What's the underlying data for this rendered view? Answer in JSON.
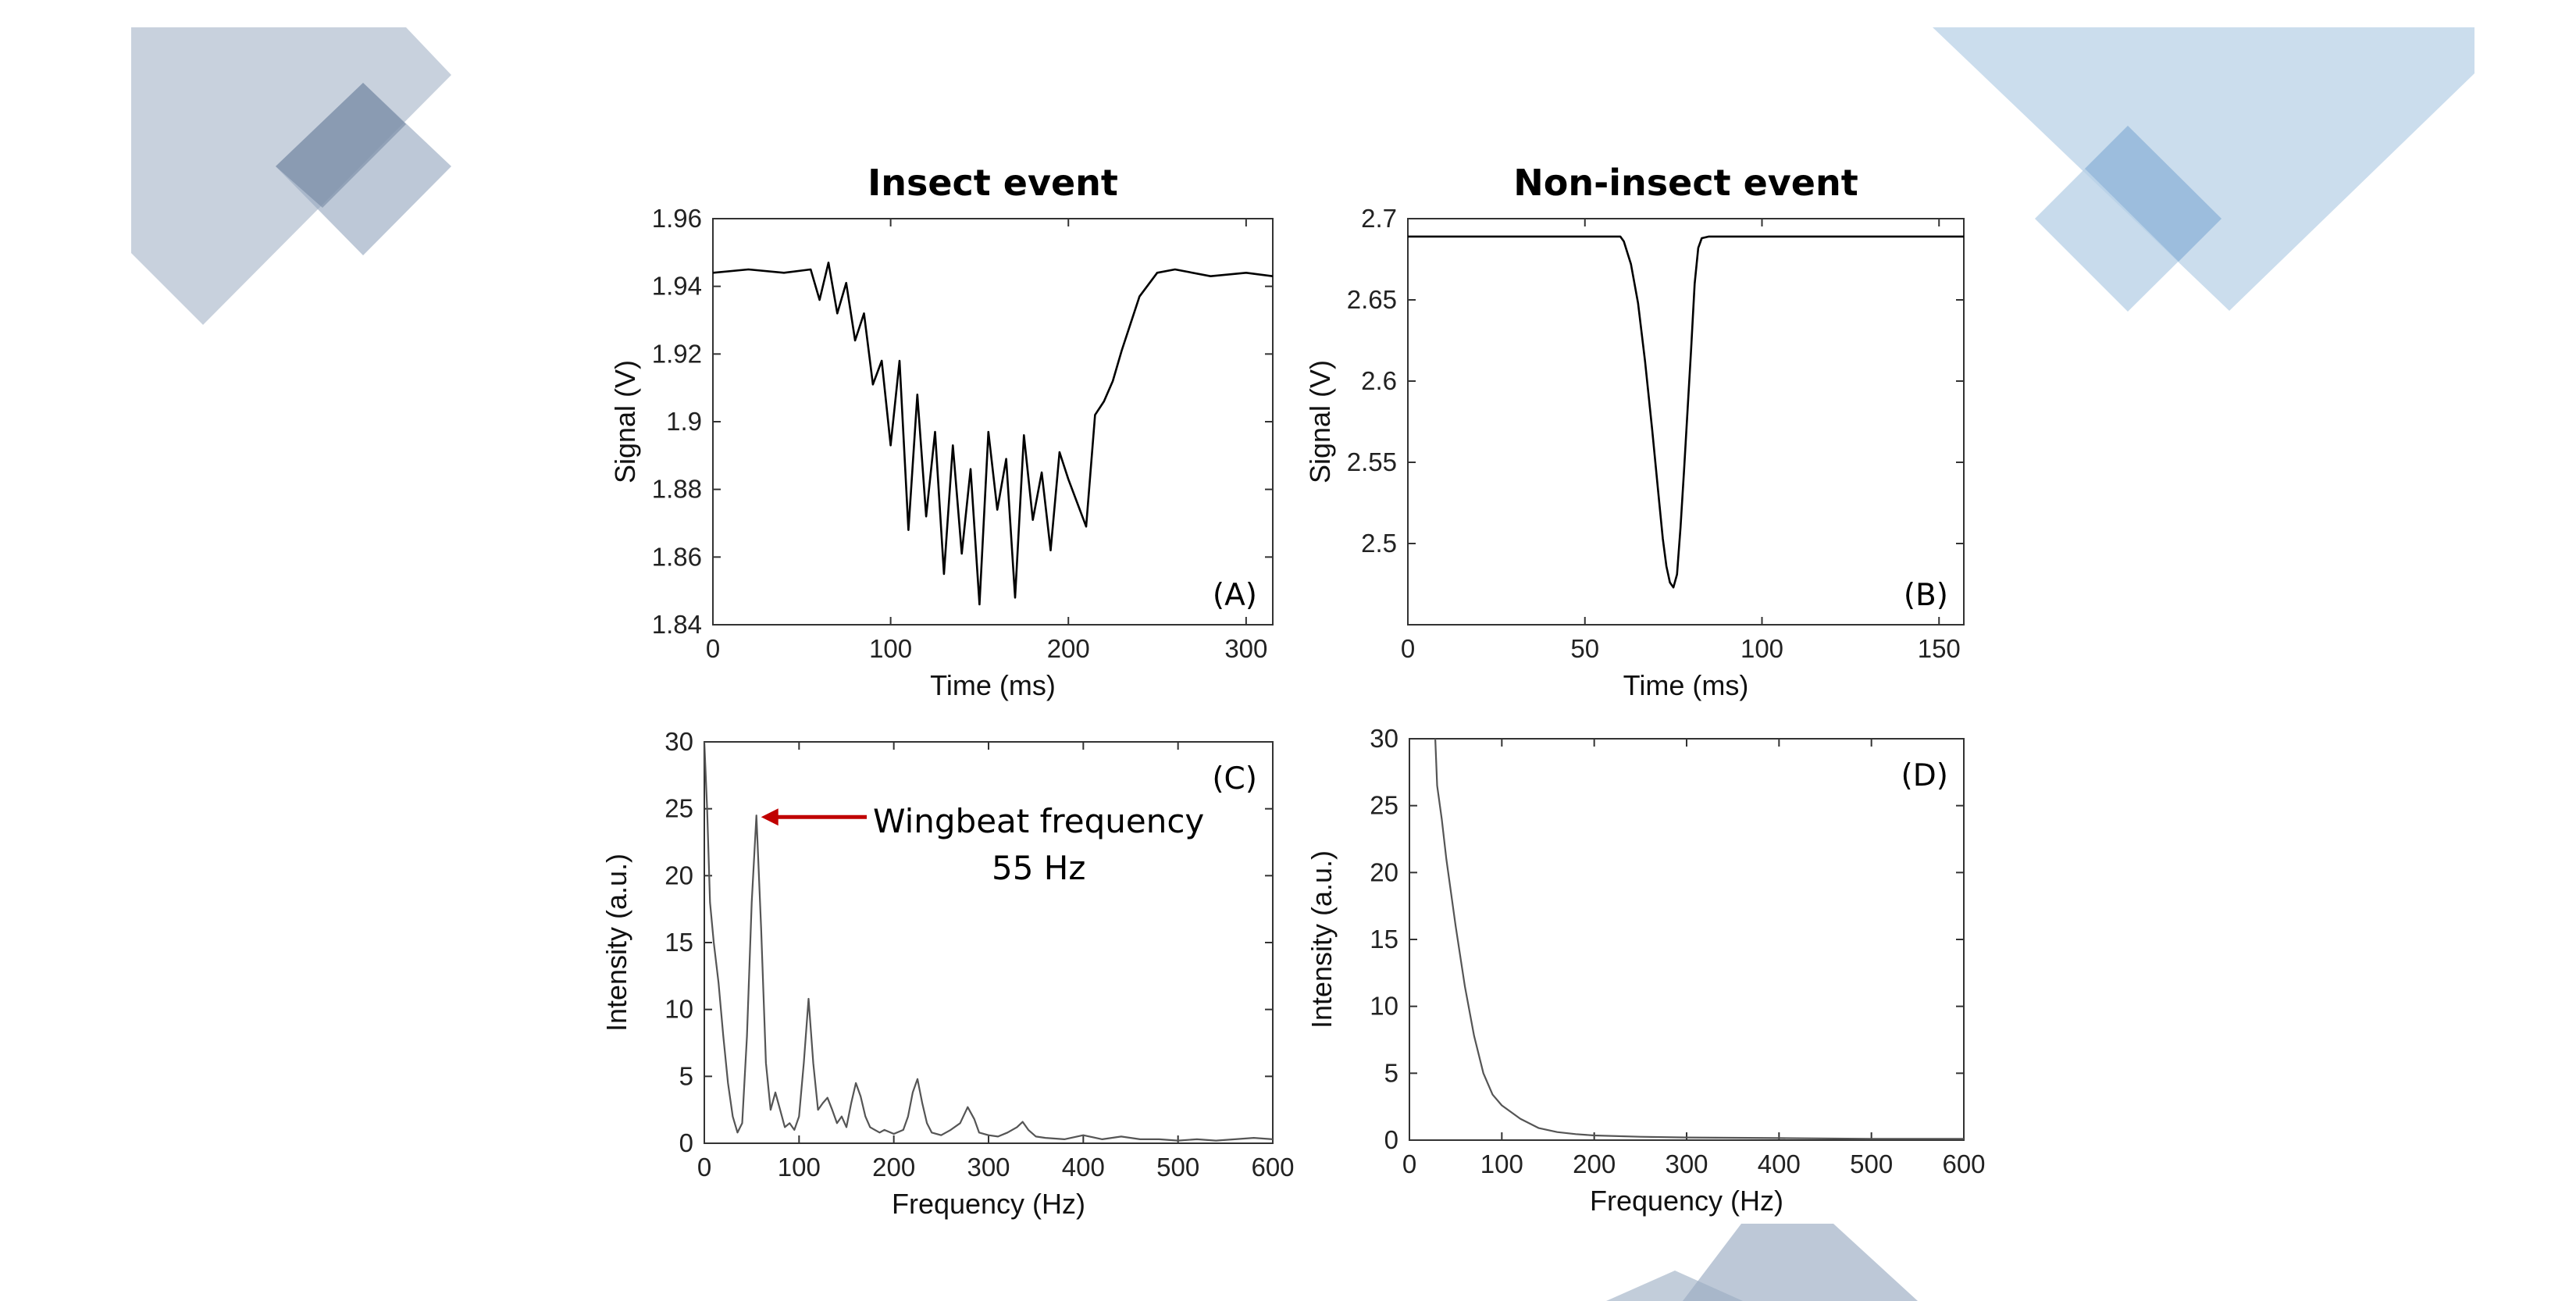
{
  "background_colors": {
    "slate": "#9aabc1",
    "slate_dark": "#7f93ab",
    "sky": "#b5cfe6",
    "sky_dark": "#8fb4d9"
  },
  "chart_data": [
    {
      "id": "A",
      "type": "line",
      "title": "Insect event",
      "panel_label": "(A)",
      "xlabel": "Time (ms)",
      "ylabel": "Signal (V)",
      "xlim": [
        0,
        315
      ],
      "ylim": [
        1.84,
        1.96
      ],
      "xticks": [
        0,
        100,
        200,
        300
      ],
      "yticks": [
        1.84,
        1.86,
        1.88,
        1.9,
        1.92,
        1.94,
        1.96
      ],
      "ytick_labels": [
        "1.84",
        "1.86",
        "1.88",
        "1.9",
        "1.92",
        "1.94",
        "1.96"
      ],
      "line_color": "#000000",
      "x": [
        0,
        20,
        40,
        55,
        60,
        65,
        70,
        75,
        80,
        85,
        90,
        95,
        100,
        105,
        110,
        115,
        120,
        125,
        130,
        135,
        140,
        145,
        150,
        155,
        160,
        165,
        170,
        175,
        180,
        185,
        190,
        195,
        200,
        205,
        210,
        215,
        220,
        225,
        230,
        235,
        240,
        250,
        260,
        280,
        300,
        315
      ],
      "y": [
        1.944,
        1.945,
        1.944,
        1.945,
        1.936,
        1.947,
        1.932,
        1.941,
        1.924,
        1.932,
        1.911,
        1.918,
        1.893,
        1.918,
        1.868,
        1.908,
        1.872,
        1.897,
        1.855,
        1.893,
        1.861,
        1.886,
        1.846,
        1.897,
        1.874,
        1.889,
        1.848,
        1.896,
        1.871,
        1.885,
        1.862,
        1.891,
        1.883,
        1.876,
        1.869,
        1.902,
        1.906,
        1.912,
        1.921,
        1.929,
        1.937,
        1.944,
        1.945,
        1.943,
        1.944,
        1.943
      ]
    },
    {
      "id": "B",
      "type": "line",
      "title": "Non-insect event",
      "panel_label": "(B)",
      "xlabel": "Time (ms)",
      "ylabel": "Signal (V)",
      "xlim": [
        0,
        157
      ],
      "ylim": [
        2.45,
        2.7
      ],
      "xticks": [
        0,
        50,
        100,
        150
      ],
      "yticks": [
        2.5,
        2.55,
        2.6,
        2.65,
        2.7
      ],
      "ytick_labels": [
        "2.5",
        "2.55",
        "2.6",
        "2.65",
        "2.7"
      ],
      "line_color": "#000000",
      "x": [
        0,
        20,
        40,
        60,
        61,
        63,
        65,
        67,
        69,
        71,
        72,
        73,
        74,
        75,
        76,
        77,
        78,
        80,
        81,
        82,
        83,
        85,
        100,
        120,
        140,
        157
      ],
      "y": [
        2.689,
        2.689,
        2.689,
        2.689,
        2.686,
        2.672,
        2.648,
        2.612,
        2.57,
        2.525,
        2.503,
        2.486,
        2.476,
        2.473,
        2.481,
        2.51,
        2.545,
        2.62,
        2.66,
        2.682,
        2.688,
        2.689,
        2.689,
        2.689,
        2.689,
        2.689
      ]
    },
    {
      "id": "C",
      "type": "line",
      "panel_label": "(C)",
      "xlabel": "Frequency (Hz)",
      "ylabel": "Intensity (a.u.)",
      "xlim": [
        0,
        600
      ],
      "ylim": [
        0,
        30
      ],
      "xticks": [
        0,
        100,
        200,
        300,
        400,
        500,
        600
      ],
      "yticks": [
        0,
        5,
        10,
        15,
        20,
        25,
        30
      ],
      "line_color": "#555555",
      "annotation": {
        "line1": "Wingbeat frequency",
        "line2": "55 Hz",
        "arrow_color": "#c00000",
        "target_x": 55,
        "target_y": 24.5
      },
      "x": [
        0,
        3,
        6,
        10,
        15,
        20,
        25,
        30,
        35,
        40,
        45,
        50,
        55,
        60,
        65,
        70,
        75,
        80,
        85,
        90,
        95,
        100,
        105,
        110,
        115,
        120,
        125,
        130,
        135,
        140,
        145,
        150,
        155,
        160,
        165,
        170,
        175,
        180,
        185,
        190,
        200,
        210,
        215,
        220,
        225,
        230,
        235,
        240,
        250,
        260,
        270,
        278,
        285,
        290,
        300,
        310,
        320,
        330,
        336,
        342,
        350,
        360,
        380,
        400,
        420,
        440,
        460,
        480,
        500,
        520,
        540,
        560,
        580,
        600
      ],
      "y": [
        30,
        25,
        18,
        15,
        12,
        8,
        4.5,
        2,
        0.8,
        1.5,
        8,
        18,
        24.5,
        16,
        6,
        2.5,
        3.8,
        2.5,
        1.2,
        1.5,
        1,
        2,
        6,
        10.8,
        6,
        2.5,
        3,
        3.4,
        2.5,
        1.5,
        2,
        1.2,
        3,
        4.5,
        3.5,
        2,
        1.2,
        1,
        0.8,
        1,
        0.7,
        1,
        2,
        3.8,
        4.8,
        3,
        1.5,
        0.8,
        0.6,
        1,
        1.5,
        2.7,
        1.8,
        0.8,
        0.6,
        0.5,
        0.8,
        1.2,
        1.6,
        1,
        0.5,
        0.4,
        0.3,
        0.6,
        0.3,
        0.5,
        0.3,
        0.3,
        0.2,
        0.3,
        0.2,
        0.3,
        0.4,
        0.3
      ]
    },
    {
      "id": "D",
      "type": "line",
      "panel_label": "(D)",
      "xlabel": "Frequency (Hz)",
      "ylabel": "Intensity (a.u.)",
      "xlim": [
        0,
        600
      ],
      "ylim": [
        0,
        30
      ],
      "xticks": [
        0,
        100,
        200,
        300,
        400,
        500,
        600
      ],
      "yticks": [
        0,
        5,
        10,
        15,
        20,
        25,
        30
      ],
      "line_color": "#555555",
      "x": [
        28,
        30,
        35,
        40,
        50,
        60,
        70,
        80,
        90,
        100,
        120,
        140,
        160,
        180,
        200,
        250,
        300,
        400,
        500,
        600
      ],
      "y": [
        30,
        26.5,
        24,
        21,
        16,
        11.5,
        7.8,
        5,
        3.4,
        2.6,
        1.6,
        0.9,
        0.6,
        0.45,
        0.35,
        0.25,
        0.2,
        0.15,
        0.1,
        0.1
      ]
    }
  ]
}
